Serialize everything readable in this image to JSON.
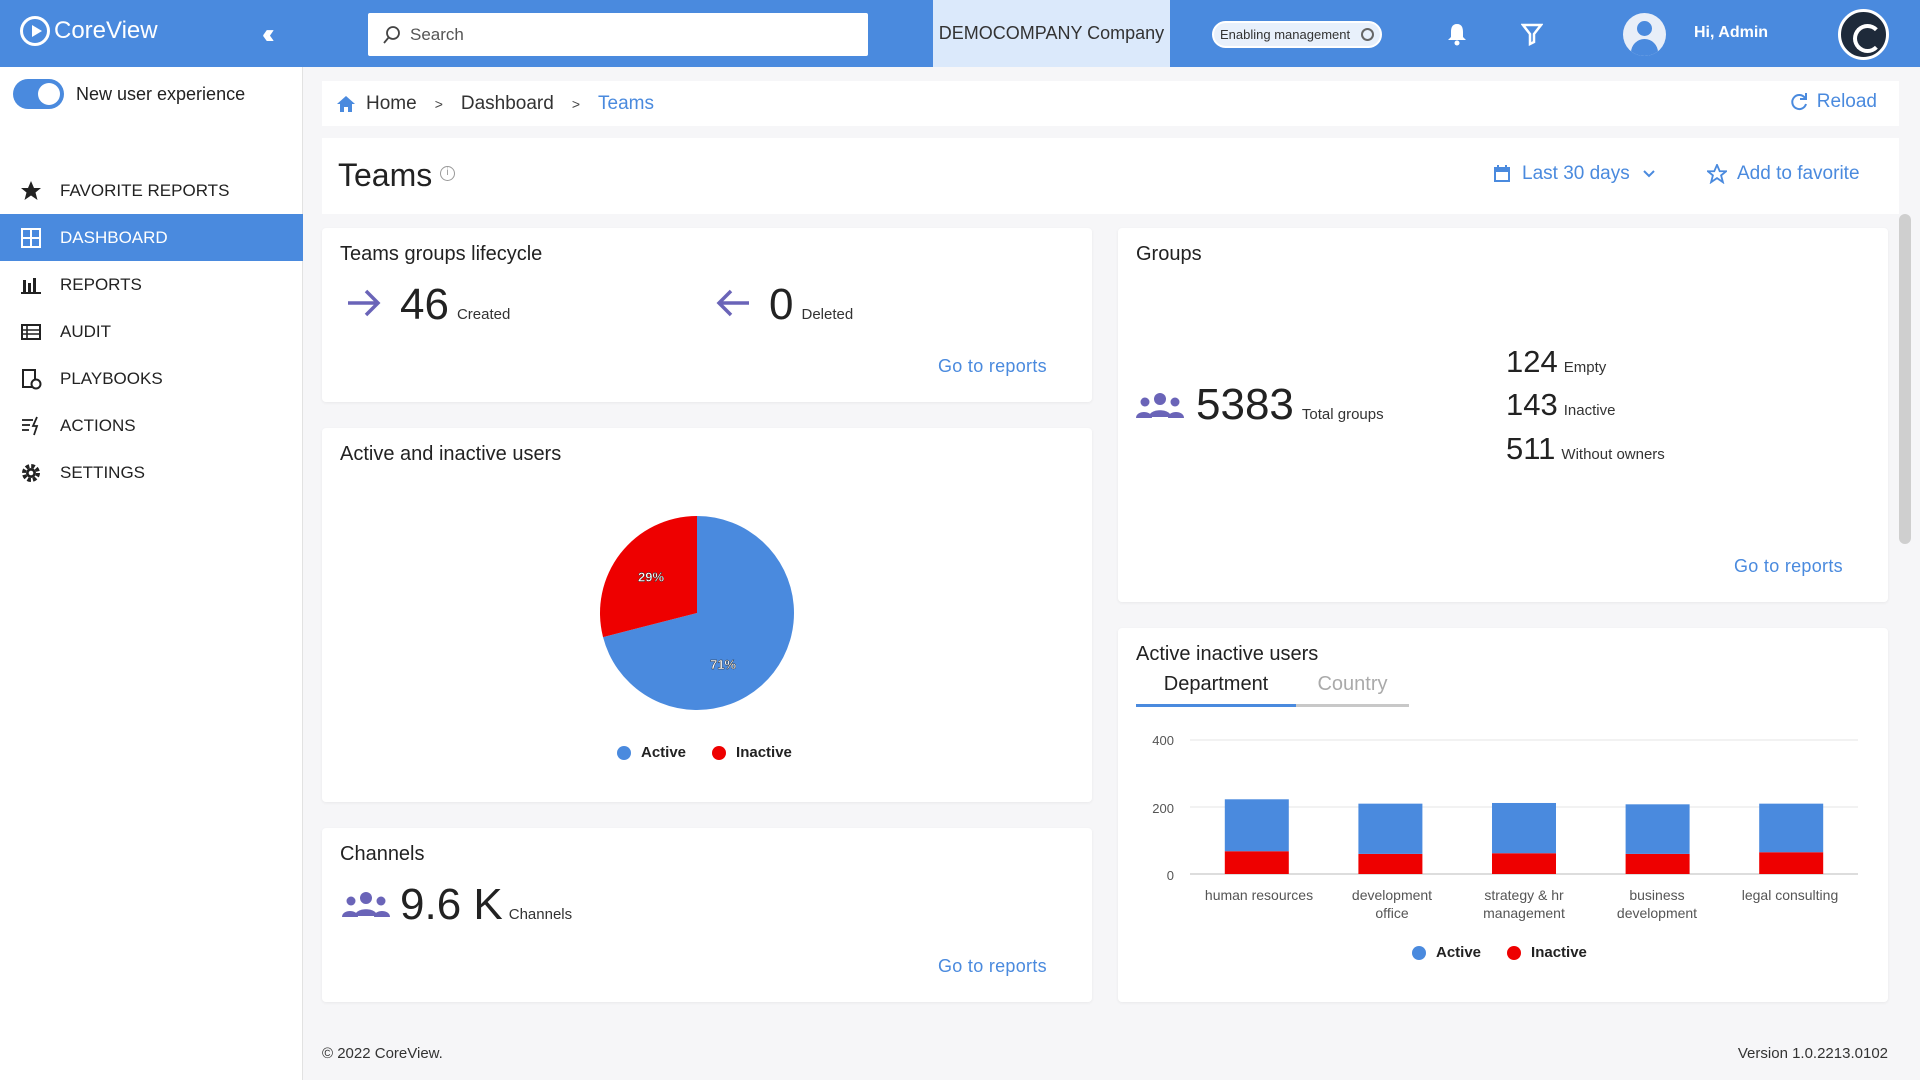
{
  "app": {
    "name": "CoreView"
  },
  "topbar": {
    "search_placeholder": "Search",
    "company": "DEMOCOMPANY Company",
    "badge": "Enabling management",
    "greeting": "Hi, Admin"
  },
  "sidebar": {
    "toggle_label": "New user experience",
    "items": [
      {
        "label": "FAVORITE REPORTS",
        "icon": "star-icon",
        "active": false
      },
      {
        "label": "DASHBOARD",
        "icon": "dashboard-icon",
        "active": true
      },
      {
        "label": "REPORTS",
        "icon": "bar-chart-icon",
        "active": false
      },
      {
        "label": "AUDIT",
        "icon": "list-icon",
        "active": false
      },
      {
        "label": "PLAYBOOKS",
        "icon": "playbook-icon",
        "active": false
      },
      {
        "label": "ACTIONS",
        "icon": "actions-icon",
        "active": false
      },
      {
        "label": "SETTINGS",
        "icon": "gear-icon",
        "active": false
      }
    ]
  },
  "breadcrumb": {
    "home": "Home",
    "dashboard": "Dashboard",
    "current": "Teams",
    "reload": "Reload"
  },
  "header": {
    "title": "Teams",
    "range": "Last 30 days",
    "favorite": "Add to favorite"
  },
  "lifecycle": {
    "title": "Teams groups lifecycle",
    "created_value": "46",
    "created_label": "Created",
    "deleted_value": "0",
    "deleted_label": "Deleted",
    "link": "Go to reports"
  },
  "groups": {
    "title": "Groups",
    "total_value": "5383",
    "total_label": "Total groups",
    "empty_value": "124",
    "empty_label": "Empty",
    "inactive_value": "143",
    "inactive_label": "Inactive",
    "noowner_value": "511",
    "noowner_label": "Without owners",
    "link": "Go to reports"
  },
  "pie": {
    "title": "Active and inactive users",
    "active_label": "Active",
    "inactive_label": "Inactive",
    "active_pct_text": "71%",
    "inactive_pct_text": "29%"
  },
  "channels": {
    "title": "Channels",
    "value": "9.6 K",
    "label": "Channels",
    "link": "Go to reports"
  },
  "bars": {
    "title": "Active inactive users",
    "tab_department": "Department",
    "tab_country": "Country",
    "legend_active": "Active",
    "legend_inactive": "Inactive",
    "tick_0": "0",
    "tick_200": "200",
    "tick_400": "400",
    "cat_0": "human resources",
    "cat_1a": "development",
    "cat_1b": "office",
    "cat_2a": "strategy & hr",
    "cat_2b": "management",
    "cat_3a": "business",
    "cat_3b": "development",
    "cat_4": "legal consulting"
  },
  "footer": {
    "copyright": "© 2022 CoreView.",
    "version": "Version 1.0.2213.0102"
  },
  "colors": {
    "primary": "#4a8ade",
    "active": "#4a8ade",
    "inactive": "#ee0000",
    "accent_purple": "#6a64b8"
  },
  "chart_data": [
    {
      "type": "pie",
      "title": "Active and inactive users",
      "categories": [
        "Active",
        "Inactive"
      ],
      "values": [
        71,
        29
      ]
    },
    {
      "type": "bar",
      "stacked": true,
      "title": "Active inactive users",
      "categories": [
        "human resources",
        "development office",
        "strategy & hr management",
        "business development",
        "legal consulting"
      ],
      "series": [
        {
          "name": "Inactive",
          "values": [
            68,
            60,
            62,
            60,
            65
          ]
        },
        {
          "name": "Active",
          "values": [
            155,
            150,
            150,
            148,
            145
          ]
        }
      ],
      "ylim": [
        0,
        400
      ],
      "grid": true,
      "legend": "bottom"
    }
  ]
}
